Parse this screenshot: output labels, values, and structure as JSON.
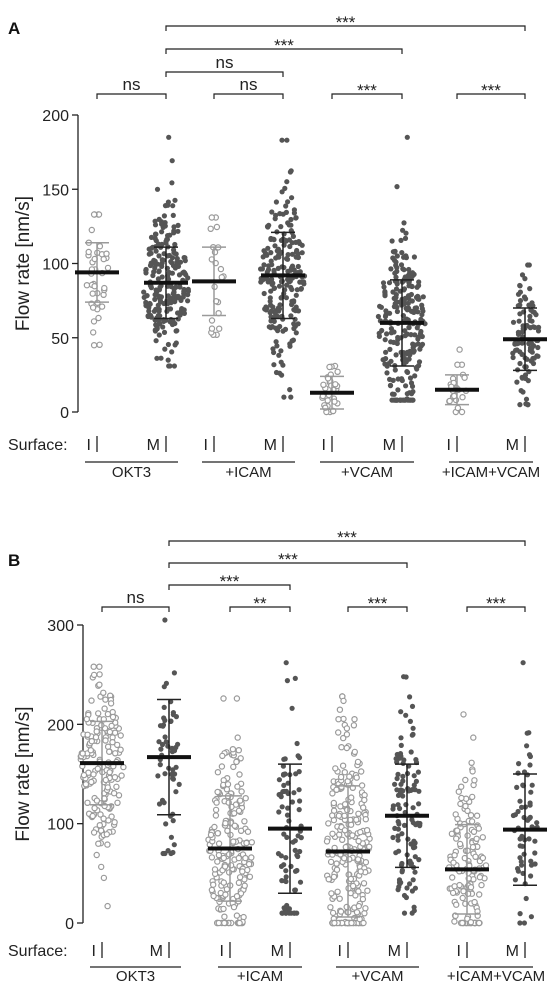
{
  "chart_data": [
    {
      "panel": "A",
      "type": "scatter",
      "ylabel": "Flow rate [nm/s]",
      "ylim": [
        0,
        200
      ],
      "yticks": [
        0,
        50,
        100,
        150,
        200
      ],
      "surface_label": "Surface:",
      "categories": [
        "I",
        "M",
        "I",
        "M",
        "I",
        "M",
        "I",
        "M"
      ],
      "groups": [
        "OKT3",
        "+ICAM",
        "+VCAM",
        "+ICAM+VCAM"
      ],
      "series": [
        {
          "group": "OKT3",
          "surface": "I",
          "n": 40,
          "mean": 94,
          "sd": 20,
          "min": 45,
          "max": 133
        },
        {
          "group": "OKT3",
          "surface": "M",
          "n": 220,
          "mean": 87,
          "sd": 24,
          "min": 31,
          "max": 185
        },
        {
          "group": "+ICAM",
          "surface": "I",
          "n": 22,
          "mean": 88,
          "sd": 23,
          "min": 52,
          "max": 131
        },
        {
          "group": "+ICAM",
          "surface": "M",
          "n": 210,
          "mean": 92,
          "sd": 29,
          "min": 10,
          "max": 183
        },
        {
          "group": "+VCAM",
          "surface": "I",
          "n": 30,
          "mean": 13,
          "sd": 11,
          "min": 0,
          "max": 31
        },
        {
          "group": "+VCAM",
          "surface": "M",
          "n": 240,
          "mean": 60,
          "sd": 29,
          "min": 8,
          "max": 185
        },
        {
          "group": "+ICAM+VCAM",
          "surface": "I",
          "n": 24,
          "mean": 15,
          "sd": 10,
          "min": 0,
          "max": 42
        },
        {
          "group": "+ICAM+VCAM",
          "surface": "M",
          "n": 90,
          "mean": 49,
          "sd": 21,
          "min": 5,
          "max": 99
        }
      ],
      "comparisons": [
        {
          "from": 0,
          "to": 1,
          "label": "ns"
        },
        {
          "from": 2,
          "to": 3,
          "label": "ns"
        },
        {
          "from": 4,
          "to": 5,
          "label": "***"
        },
        {
          "from": 6,
          "to": 7,
          "label": "***"
        },
        {
          "from": 1,
          "to": 3,
          "label": "ns"
        },
        {
          "from": 1,
          "to": 5,
          "label": "***"
        },
        {
          "from": 1,
          "to": 7,
          "label": "***"
        }
      ]
    },
    {
      "panel": "B",
      "type": "scatter",
      "ylabel": "Flow rate [nm/s]",
      "ylim": [
        0,
        300
      ],
      "yticks": [
        0,
        100,
        200,
        300
      ],
      "surface_label": "Surface:",
      "categories": [
        "I",
        "M",
        "I",
        "M",
        "I",
        "M",
        "I",
        "M"
      ],
      "groups": [
        "OKT3",
        "+ICAM",
        "+VCAM",
        "+ICAM+VCAM"
      ],
      "series": [
        {
          "group": "OKT3",
          "surface": "I",
          "n": 170,
          "mean": 161,
          "sd": 42,
          "min": 17,
          "max": 258
        },
        {
          "group": "OKT3",
          "surface": "M",
          "n": 55,
          "mean": 167,
          "sd": 58,
          "min": 70,
          "max": 305
        },
        {
          "group": "+ICAM",
          "surface": "I",
          "n": 200,
          "mean": 75,
          "sd": 53,
          "min": 0,
          "max": 226
        },
        {
          "group": "+ICAM",
          "surface": "M",
          "n": 80,
          "mean": 95,
          "sd": 65,
          "min": 10,
          "max": 262
        },
        {
          "group": "+VCAM",
          "surface": "I",
          "n": 260,
          "mean": 72,
          "sd": 66,
          "min": 0,
          "max": 228
        },
        {
          "group": "+VCAM",
          "surface": "M",
          "n": 110,
          "mean": 108,
          "sd": 52,
          "min": 10,
          "max": 248
        },
        {
          "group": "+ICAM+VCAM",
          "surface": "I",
          "n": 140,
          "mean": 54,
          "sd": 45,
          "min": 0,
          "max": 210
        },
        {
          "group": "+ICAM+VCAM",
          "surface": "M",
          "n": 60,
          "mean": 94,
          "sd": 56,
          "min": 0,
          "max": 262
        }
      ],
      "comparisons": [
        {
          "from": 0,
          "to": 1,
          "label": "ns"
        },
        {
          "from": 2,
          "to": 3,
          "label": "**"
        },
        {
          "from": 4,
          "to": 5,
          "label": "***"
        },
        {
          "from": 6,
          "to": 7,
          "label": "***"
        },
        {
          "from": 1,
          "to": 3,
          "label": "***"
        },
        {
          "from": 1,
          "to": 5,
          "label": "***"
        },
        {
          "from": 1,
          "to": 7,
          "label": "***"
        }
      ]
    }
  ],
  "colors": {
    "I_marker": "#9a9a9a",
    "M_marker": "#555555",
    "mean_bar": "#111111",
    "error_bar_I": "#9a9a9a",
    "error_bar_M": "#222222",
    "axis": "#222222"
  }
}
